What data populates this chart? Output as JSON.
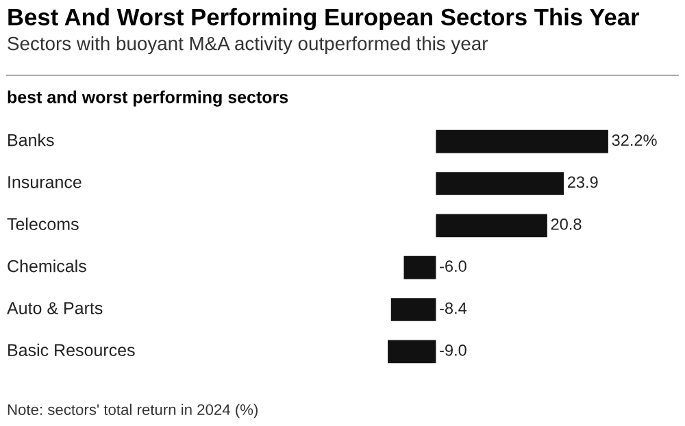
{
  "chart_data": {
    "type": "bar",
    "orientation": "horizontal",
    "title": "Best And Worst Performing European Sectors This Year",
    "subtitle": "Sectors with buoyant M&A activity outperformed this year",
    "xlabel": "best and worst performing sectors",
    "categories": [
      "Banks",
      "Insurance",
      "Telecoms",
      "Chemicals",
      "Auto & Parts",
      "Basic Resources"
    ],
    "values": [
      32.2,
      23.9,
      20.8,
      -6.0,
      -8.4,
      -9.0
    ],
    "value_labels": [
      "32.2%",
      "23.9",
      "20.8",
      "-6.0",
      "-8.4",
      "-9.0"
    ],
    "color": "#111111",
    "annotations": [
      "Note: sectors' total return in 2024 (%)"
    ]
  }
}
